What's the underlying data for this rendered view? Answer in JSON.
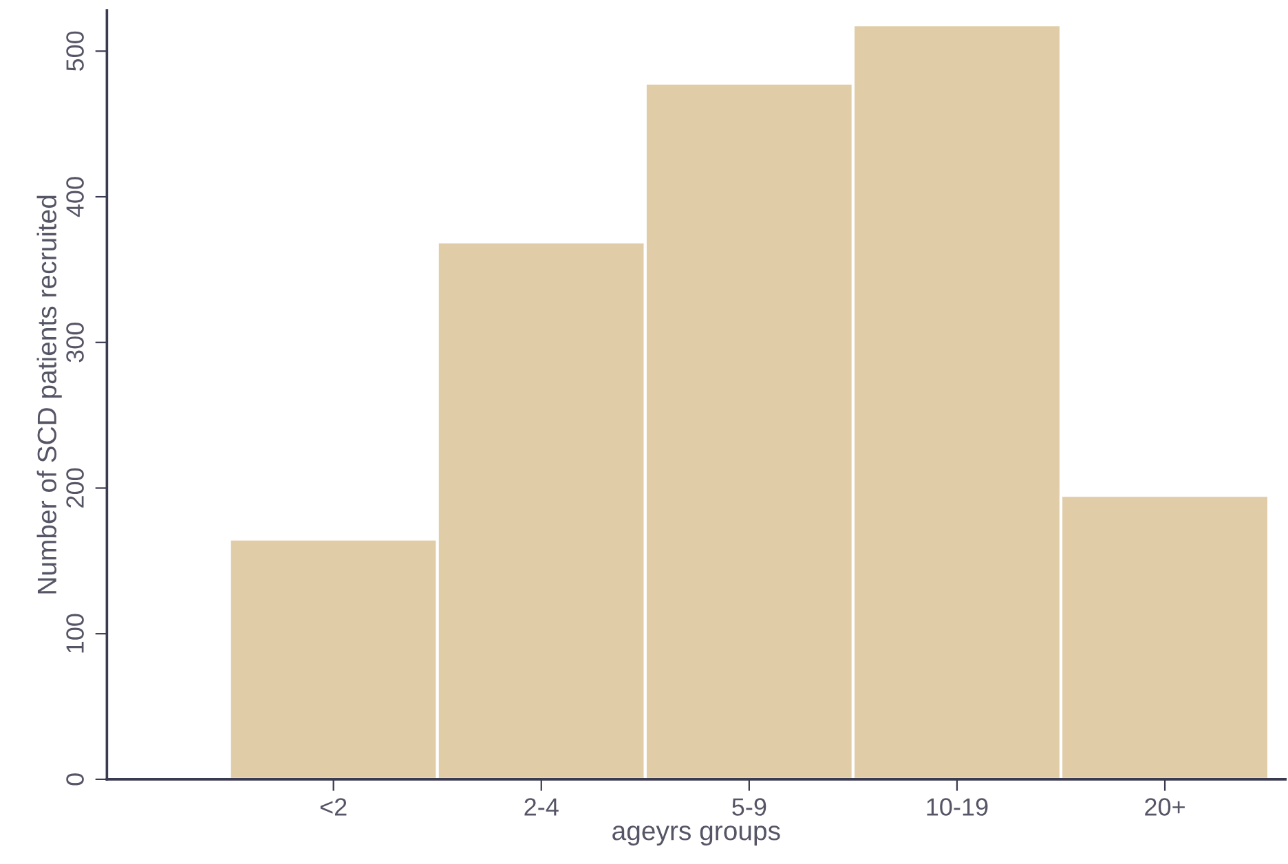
{
  "chart_data": {
    "type": "bar",
    "xlabel": "ageyrs groups",
    "ylabel": "Number of SCD patients recruited",
    "categories": [
      "<2",
      "2-4",
      "5-9",
      "10-19",
      "20+"
    ],
    "values": [
      165,
      369,
      478,
      518,
      195
    ],
    "color": "#e0cda8",
    "ylim": [
      0,
      528
    ],
    "yticks": [
      0,
      100,
      200,
      300,
      400,
      500
    ],
    "grid": false
  }
}
